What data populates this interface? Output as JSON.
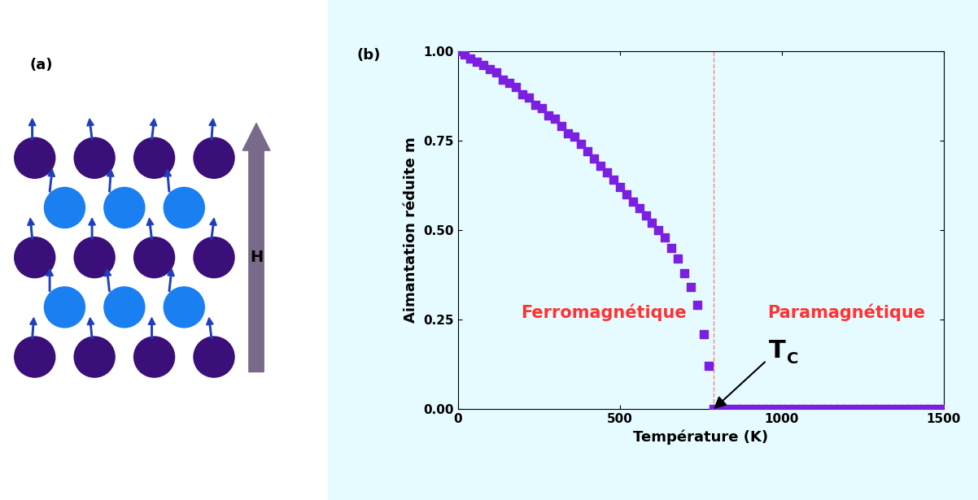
{
  "panel_a": {
    "label": "(a)",
    "field_label": "H"
  },
  "chart_data": {
    "type": "scatter",
    "panel_label": "(b)",
    "x_label": "Température (K)",
    "y_label": "Aimantation réduite m",
    "x": [
      0,
      20,
      40,
      60,
      80,
      100,
      120,
      140,
      160,
      180,
      200,
      220,
      240,
      260,
      280,
      300,
      320,
      340,
      360,
      380,
      400,
      420,
      440,
      460,
      480,
      500,
      520,
      540,
      560,
      580,
      600,
      620,
      640,
      660,
      680,
      700,
      720,
      740,
      760,
      775,
      790,
      800,
      820,
      840,
      860,
      880,
      900,
      920,
      940,
      960,
      980,
      1000,
      1020,
      1040,
      1060,
      1080,
      1100,
      1120,
      1140,
      1160,
      1180,
      1200,
      1220,
      1240,
      1260,
      1280,
      1300,
      1320,
      1340,
      1360,
      1380,
      1400,
      1420,
      1440,
      1460,
      1480,
      1500
    ],
    "values": [
      1.0,
      0.99,
      0.98,
      0.97,
      0.96,
      0.95,
      0.94,
      0.92,
      0.91,
      0.9,
      0.88,
      0.87,
      0.85,
      0.84,
      0.82,
      0.81,
      0.79,
      0.77,
      0.76,
      0.74,
      0.72,
      0.7,
      0.68,
      0.66,
      0.64,
      0.62,
      0.6,
      0.58,
      0.56,
      0.54,
      0.52,
      0.5,
      0.48,
      0.45,
      0.42,
      0.38,
      0.34,
      0.29,
      0.21,
      0.12,
      0.0,
      0,
      0,
      0,
      0,
      0,
      0,
      0,
      0,
      0,
      0,
      0,
      0,
      0,
      0,
      0,
      0,
      0,
      0,
      0,
      0,
      0,
      0,
      0,
      0,
      0,
      0,
      0,
      0,
      0,
      0,
      0,
      0,
      0,
      0,
      0,
      0
    ],
    "color": "#7b1fe0",
    "marker": "square",
    "xlim": [
      0,
      1500
    ],
    "ylim": [
      0,
      1.0
    ],
    "xticks": [
      0,
      500,
      1000,
      1500
    ],
    "yticks": [
      {
        "value": 0,
        "label": "0.00"
      },
      {
        "value": 0.25,
        "label": "0.25"
      },
      {
        "value": 0.5,
        "label": "0.50"
      },
      {
        "value": 0.75,
        "label": "0.75"
      },
      {
        "value": 1.0,
        "label": "1.00"
      }
    ],
    "annotations": [
      {
        "text": "Ferromagnétique",
        "color": "#ff3333"
      },
      {
        "text": "Paramagnétique",
        "color": "#ff3333"
      }
    ],
    "curie_temperature": 790,
    "curie_label": {
      "text": "T",
      "subscript": "C"
    }
  }
}
